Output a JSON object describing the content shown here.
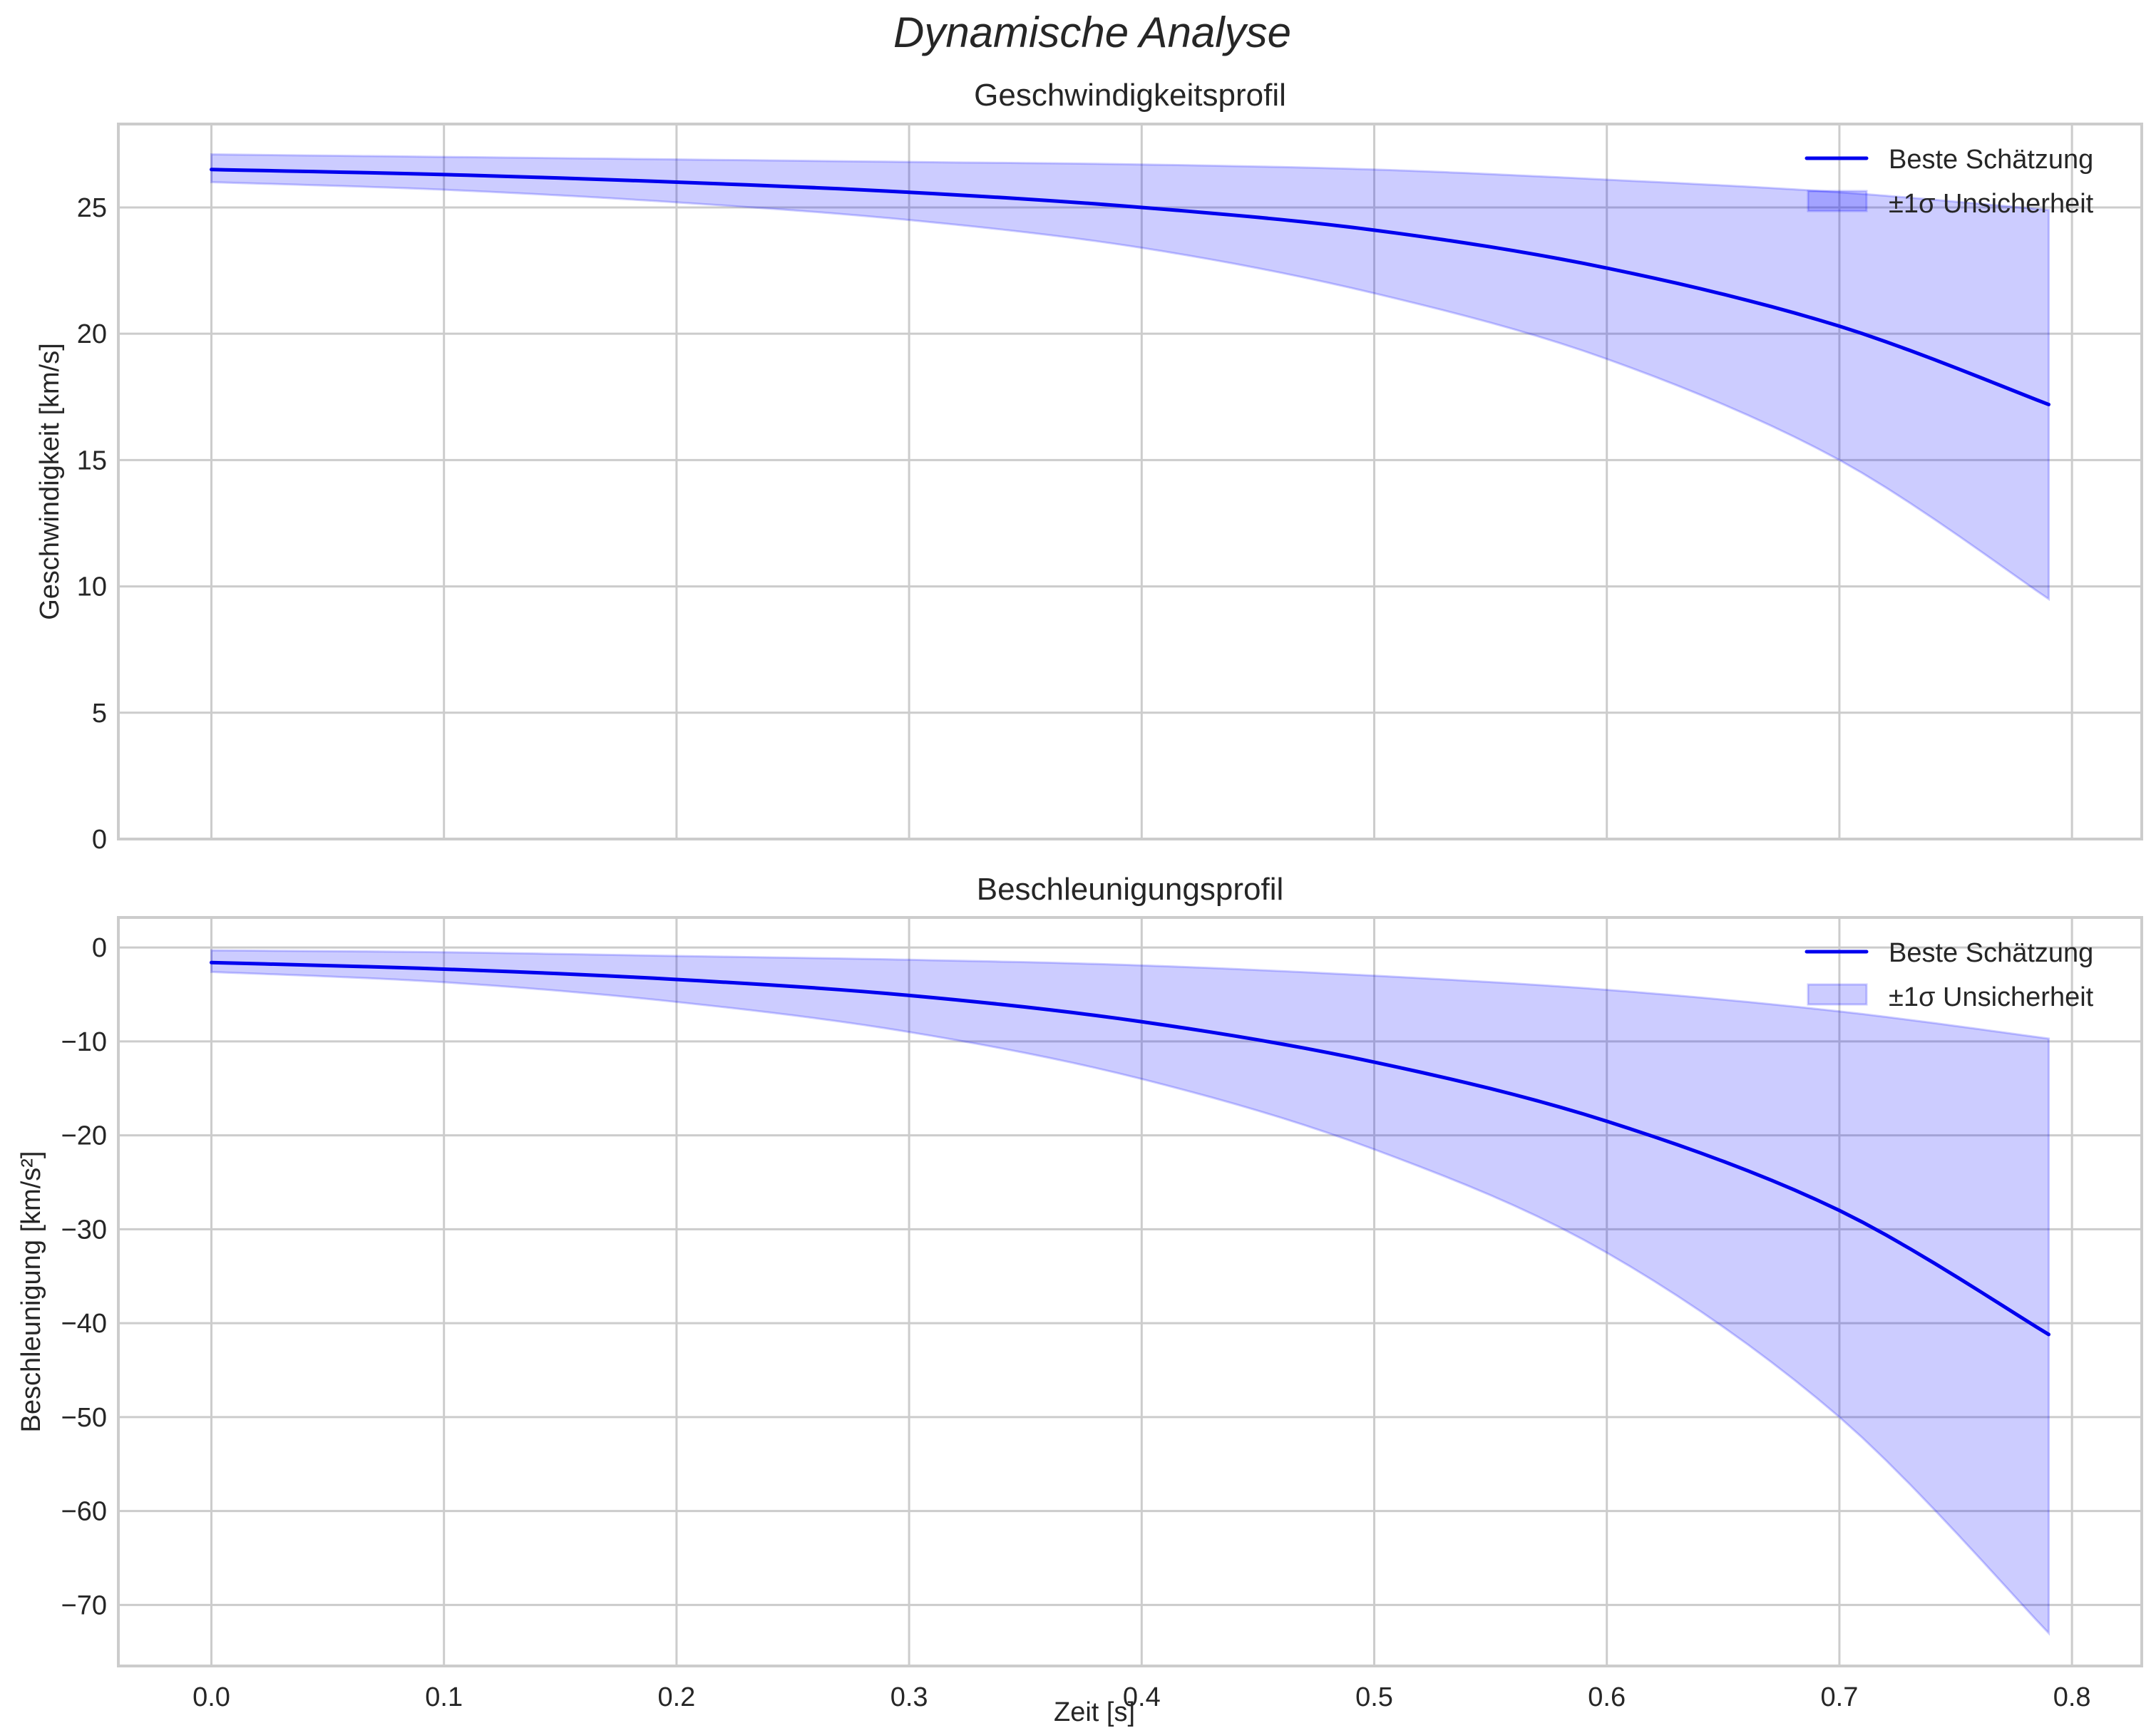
{
  "suptitle": "Dynamische Analyse",
  "colors": {
    "line": "#0000ee",
    "band": "#0000ff",
    "grid": "#cccccc",
    "text": "#262626"
  },
  "chart_data": [
    {
      "type": "line",
      "title": "Geschwindigkeitsprofil",
      "xlabel": "",
      "ylabel": "Geschwindigkeit [km/s]",
      "xlim": [
        -0.04,
        0.83
      ],
      "ylim": [
        0,
        28.3
      ],
      "xticks": [
        "0.0",
        "0.1",
        "0.2",
        "0.3",
        "0.4",
        "0.5",
        "0.6",
        "0.7",
        "0.8"
      ],
      "yticks": [
        "0",
        "5",
        "10",
        "15",
        "20",
        "25"
      ],
      "ytick_values": [
        0,
        5,
        10,
        15,
        20,
        25
      ],
      "grid": true,
      "legend": {
        "position": "upper right",
        "entries": [
          "Beste Schätzung",
          "±1σ Unsicherheit"
        ]
      },
      "x": [
        0.0,
        0.1,
        0.2,
        0.3,
        0.4,
        0.5,
        0.6,
        0.7,
        0.79
      ],
      "series": [
        {
          "name": "Beste Schätzung",
          "values": [
            26.5,
            26.3,
            26.0,
            25.6,
            25.0,
            24.1,
            22.6,
            20.3,
            17.2
          ]
        },
        {
          "name": "±1σ Unsicherheit (oben)",
          "values": [
            27.1,
            27.0,
            26.9,
            26.8,
            26.7,
            26.5,
            26.1,
            25.6,
            24.9
          ]
        },
        {
          "name": "±1σ Unsicherheit (unten)",
          "values": [
            26.0,
            25.7,
            25.2,
            24.5,
            23.4,
            21.6,
            19.0,
            15.0,
            9.5
          ]
        }
      ]
    },
    {
      "type": "line",
      "title": "Beschleunigungsprofil",
      "xlabel": "Zeit [s]",
      "ylabel": "Beschleunigung [km/s²]",
      "xlim": [
        -0.04,
        0.83
      ],
      "ylim": [
        -76.5,
        3.2
      ],
      "xticks": [
        "0.0",
        "0.1",
        "0.2",
        "0.3",
        "0.4",
        "0.5",
        "0.6",
        "0.7",
        "0.8"
      ],
      "yticks": [
        "0",
        "−10",
        "−20",
        "−30",
        "−40",
        "−50",
        "−60",
        "−70"
      ],
      "ytick_values": [
        0,
        -10,
        -20,
        -30,
        -40,
        -50,
        -60,
        -70
      ],
      "grid": true,
      "legend": {
        "position": "upper right",
        "entries": [
          "Beste Schätzung",
          "±1σ Unsicherheit"
        ]
      },
      "x": [
        0.0,
        0.1,
        0.2,
        0.3,
        0.4,
        0.5,
        0.6,
        0.7,
        0.79
      ],
      "series": [
        {
          "name": "Beste Schätzung",
          "values": [
            -1.6,
            -2.3,
            -3.4,
            -5.1,
            -7.9,
            -12.2,
            -18.5,
            -28.0,
            -41.2
          ]
        },
        {
          "name": "±1σ Unsicherheit (oben)",
          "values": [
            -0.3,
            -0.5,
            -0.9,
            -1.3,
            -1.9,
            -3.0,
            -4.5,
            -6.8,
            -9.7
          ]
        },
        {
          "name": "±1σ Unsicherheit (unten)",
          "values": [
            -2.6,
            -3.7,
            -5.8,
            -9.0,
            -14.0,
            -21.5,
            -32.5,
            -50.0,
            -73.0
          ]
        }
      ]
    }
  ]
}
